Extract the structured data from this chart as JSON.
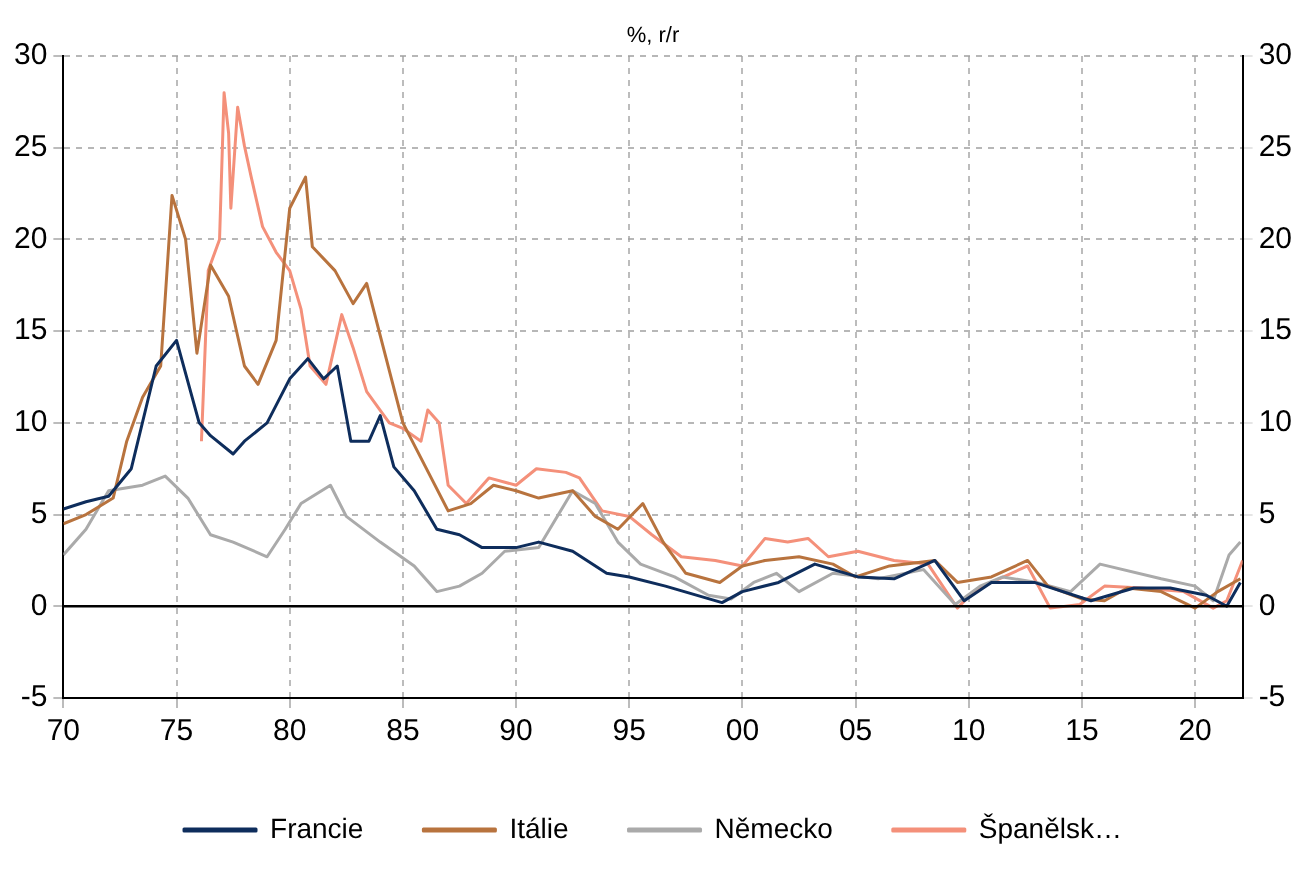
{
  "chart_data": {
    "type": "line",
    "subtitle": "%, r/r",
    "xlim": [
      1970,
      2022.1
    ],
    "xticks": [
      {
        "value": 1970,
        "label": "70"
      },
      {
        "value": 1975,
        "label": "75"
      },
      {
        "value": 1980,
        "label": "80"
      },
      {
        "value": 1985,
        "label": "85"
      },
      {
        "value": 1990,
        "label": "90"
      },
      {
        "value": 1995,
        "label": "95"
      },
      {
        "value": 2000,
        "label": "00"
      },
      {
        "value": 2005,
        "label": "05"
      },
      {
        "value": 2010,
        "label": "10"
      },
      {
        "value": 2015,
        "label": "15"
      },
      {
        "value": 2020,
        "label": "20"
      }
    ],
    "ylim": [
      -5,
      30
    ],
    "yticks": [
      -5,
      0,
      5,
      10,
      15,
      20,
      25,
      30
    ],
    "y2lim": [
      -5,
      30
    ],
    "y2ticks": [
      -5,
      0,
      5,
      10,
      15,
      20,
      25,
      30
    ],
    "grid": true,
    "legend": "bottom",
    "marker": "none",
    "line_style": "solid",
    "ref_lines": [
      {
        "axis": "y",
        "value": 0,
        "color": "#000000"
      }
    ],
    "series": [
      {
        "name": "Francie",
        "color": "#0e2d5c",
        "x": [
          1970,
          1971,
          1972,
          1973,
          1974.1,
          1975,
          1976,
          1976.5,
          1977.5,
          1978,
          1979,
          1980,
          1980.8,
          1981.5,
          1982.1,
          1982.7,
          1983.5,
          1984,
          1984.6,
          1985.5,
          1986.5,
          1987.5,
          1988.5,
          1990,
          1991,
          1992.5,
          1994,
          1995,
          1996.6,
          1999.1,
          2000,
          2001.6,
          2003.2,
          2005.1,
          2006.7,
          2008.5,
          2009.8,
          2011,
          2012.9,
          2015.4,
          2017.3,
          2018.9,
          2020.5,
          2021.4,
          2022
        ],
        "values": [
          5.3,
          5.7,
          6.0,
          7.5,
          13.1,
          14.5,
          10.0,
          9.3,
          8.3,
          9.0,
          10.0,
          12.4,
          13.5,
          12.4,
          13.1,
          9.0,
          9.0,
          10.4,
          7.6,
          6.3,
          4.2,
          3.9,
          3.2,
          3.2,
          3.5,
          3.0,
          1.8,
          1.6,
          1.1,
          0.2,
          0.8,
          1.3,
          2.3,
          1.6,
          1.5,
          2.5,
          0.3,
          1.3,
          1.3,
          0.3,
          1.0,
          1.0,
          0.6,
          0.0,
          1.3
        ]
      },
      {
        "name": "Itálie",
        "color": "#b8733e",
        "x": [
          1970,
          1971,
          1972.2,
          1972.8,
          1973.5,
          1974.3,
          1974.8,
          1975.4,
          1975.9,
          1976.5,
          1977.3,
          1978,
          1978.6,
          1979.4,
          1980,
          1980.7,
          1981,
          1982,
          1982.8,
          1983.4,
          1984.2,
          1985,
          1986,
          1987,
          1988,
          1989,
          1990,
          1991,
          1992.5,
          1993.5,
          1994.5,
          1995.6,
          1996.5,
          1997.5,
          1999,
          2000,
          2001,
          2002.5,
          2004,
          2005,
          2006.5,
          2008.5,
          2009.5,
          2011,
          2012.6,
          2013.5,
          2015,
          2016,
          2017,
          2018.5,
          2020,
          2021,
          2022
        ],
        "values": [
          4.5,
          5.0,
          5.9,
          9.0,
          11.4,
          13.1,
          22.4,
          20.0,
          13.8,
          18.6,
          16.9,
          13.1,
          12.1,
          14.5,
          21.7,
          23.4,
          19.6,
          18.3,
          16.5,
          17.6,
          13.8,
          10.0,
          7.6,
          5.2,
          5.6,
          6.6,
          6.3,
          5.9,
          6.3,
          4.9,
          4.2,
          5.6,
          3.5,
          1.8,
          1.3,
          2.2,
          2.5,
          2.7,
          2.3,
          1.6,
          2.2,
          2.5,
          1.3,
          1.6,
          2.5,
          1.1,
          0.4,
          0.3,
          1.0,
          0.8,
          -0.1,
          0.8,
          1.5
        ]
      },
      {
        "name": "Německo",
        "color": "#aaaaaa",
        "x": [
          1970,
          1971,
          1972,
          1973.5,
          1974.5,
          1975.5,
          1976.5,
          1977.5,
          1979,
          1979.8,
          1980.5,
          1981.8,
          1982.5,
          1984,
          1985.5,
          1986.5,
          1987.5,
          1988.5,
          1989.5,
          1991,
          1992.5,
          1993.5,
          1994.5,
          1995.5,
          1997,
          1998.5,
          1999.5,
          2000.5,
          2001.5,
          2002.5,
          2004,
          2006,
          2008,
          2009.4,
          2010.5,
          2011.5,
          2013,
          2014.5,
          2015.8,
          2018.5,
          2020,
          2020.8,
          2021.5,
          2022
        ],
        "values": [
          2.8,
          4.2,
          6.3,
          6.6,
          7.1,
          5.9,
          3.9,
          3.5,
          2.7,
          4.2,
          5.6,
          6.6,
          4.9,
          3.5,
          2.2,
          0.8,
          1.1,
          1.8,
          3.0,
          3.2,
          6.3,
          5.6,
          3.5,
          2.3,
          1.6,
          0.6,
          0.4,
          1.3,
          1.8,
          0.8,
          1.8,
          1.5,
          2.0,
          0.1,
          1.1,
          1.6,
          1.3,
          0.8,
          2.3,
          1.5,
          1.1,
          0.3,
          2.8,
          3.5
        ]
      },
      {
        "name": "Španělsk…",
        "color": "#f4907a",
        "x": [
          1976.1,
          1976.4,
          1976.9,
          1977.1,
          1977.3,
          1977.4,
          1977.7,
          1978,
          1978.3,
          1978.8,
          1979.4,
          1980,
          1980.5,
          1980.9,
          1981.6,
          1982.3,
          1982.8,
          1983.4,
          1984.4,
          1985,
          1985.8,
          1986.1,
          1986.6,
          1987,
          1987.8,
          1988.8,
          1990,
          1990.9,
          1992.2,
          1992.8,
          1993.8,
          1995,
          1996,
          1997.3,
          1998.8,
          2000,
          2001,
          2002,
          2002.9,
          2003.8,
          2005.1,
          2006.7,
          2008.2,
          2009.5,
          2010.2,
          2011,
          2012.6,
          2013.6,
          2014.9,
          2016,
          2017.6,
          2019.5,
          2020.8,
          2021.4,
          2022.1
        ],
        "values": [
          9.0,
          18.3,
          20.0,
          28.0,
          25.8,
          21.7,
          27.2,
          25.1,
          23.4,
          20.7,
          19.3,
          18.3,
          16.2,
          13.1,
          12.1,
          15.9,
          14.1,
          11.7,
          10.0,
          9.7,
          9.0,
          10.7,
          10.0,
          6.6,
          5.6,
          7.0,
          6.6,
          7.5,
          7.3,
          7.0,
          5.2,
          4.9,
          3.9,
          2.7,
          2.5,
          2.2,
          3.7,
          3.5,
          3.7,
          2.7,
          3.0,
          2.5,
          2.3,
          -0.1,
          0.8,
          1.3,
          2.2,
          -0.1,
          0.1,
          1.1,
          1.0,
          0.8,
          -0.1,
          0.3,
          2.5
        ]
      }
    ]
  }
}
